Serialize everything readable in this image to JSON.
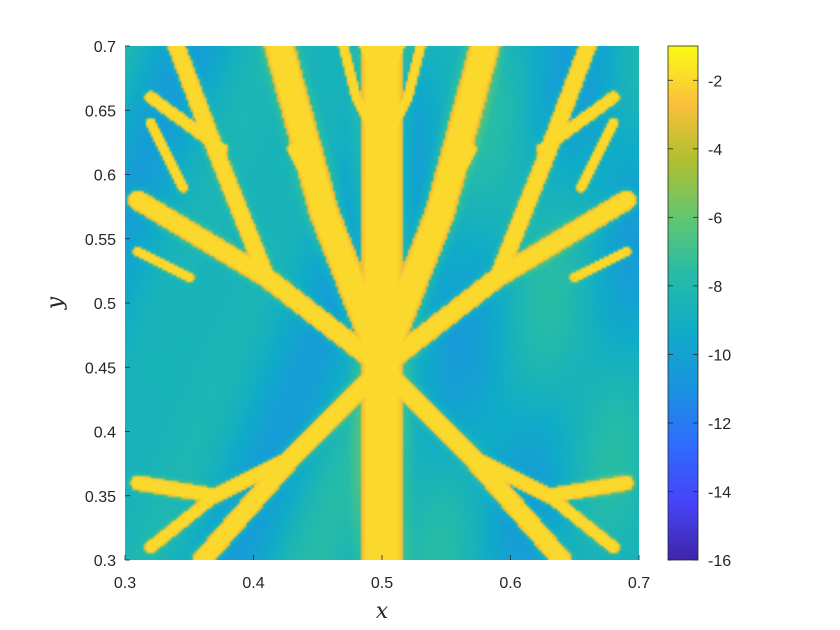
{
  "chart_data": {
    "type": "heatmap",
    "title": "",
    "xlabel": "x",
    "ylabel": "y",
    "xlim": [
      0.3,
      0.7
    ],
    "ylim": [
      0.3,
      0.7
    ],
    "x_ticks": [
      "0.3",
      "0.4",
      "0.5",
      "0.6",
      "0.7"
    ],
    "y_ticks": [
      "0.3",
      "0.35",
      "0.4",
      "0.45",
      "0.5",
      "0.55",
      "0.6",
      "0.65",
      "0.7"
    ],
    "colorbar": {
      "colormap": "parula",
      "range": [
        -16,
        -1
      ],
      "ticks": [
        "-2",
        "-4",
        "-6",
        "-8",
        "-10",
        "-12",
        "-14",
        "-16"
      ],
      "colors": [
        "#3e26a8",
        "#4743f8",
        "#2f6bfe",
        "#1a92e0",
        "#10acc8",
        "#26bca7",
        "#63c66f",
        "#b0c02f",
        "#fcc03b",
        "#f9fb15"
      ]
    },
    "background_value": -9,
    "branch_value": -2,
    "description_of_field": "Symmetric dendritic/branching structure of high values around x = 0.5 on a background of low values",
    "branches": [
      {
        "points": [
          [
            0.5,
            0.3
          ],
          [
            0.5,
            0.45
          ],
          [
            0.5,
            0.7
          ]
        ],
        "w": 0.017
      },
      {
        "points": [
          [
            0.5,
            0.455
          ],
          [
            0.455,
            0.57
          ],
          [
            0.42,
            0.7
          ]
        ],
        "w": 0.012
      },
      {
        "points": [
          [
            0.5,
            0.455
          ],
          [
            0.545,
            0.57
          ],
          [
            0.58,
            0.7
          ]
        ],
        "w": 0.012
      },
      {
        "points": [
          [
            0.5,
            0.45
          ],
          [
            0.41,
            0.52
          ],
          [
            0.31,
            0.58
          ]
        ],
        "w": 0.008
      },
      {
        "points": [
          [
            0.5,
            0.45
          ],
          [
            0.59,
            0.52
          ],
          [
            0.69,
            0.58
          ]
        ],
        "w": 0.008
      },
      {
        "points": [
          [
            0.5,
            0.45
          ],
          [
            0.43,
            0.38
          ],
          [
            0.36,
            0.3
          ]
        ],
        "w": 0.008
      },
      {
        "points": [
          [
            0.5,
            0.45
          ],
          [
            0.57,
            0.38
          ],
          [
            0.64,
            0.3
          ]
        ],
        "w": 0.008
      },
      {
        "points": [
          [
            0.41,
            0.52
          ],
          [
            0.37,
            0.62
          ],
          [
            0.34,
            0.7
          ]
        ],
        "w": 0.007
      },
      {
        "points": [
          [
            0.59,
            0.52
          ],
          [
            0.63,
            0.62
          ],
          [
            0.66,
            0.7
          ]
        ],
        "w": 0.007
      },
      {
        "points": [
          [
            0.375,
            0.62
          ],
          [
            0.32,
            0.66
          ]
        ],
        "w": 0.005
      },
      {
        "points": [
          [
            0.625,
            0.62
          ],
          [
            0.68,
            0.66
          ]
        ],
        "w": 0.005
      },
      {
        "points": [
          [
            0.43,
            0.38
          ],
          [
            0.37,
            0.35
          ],
          [
            0.31,
            0.36
          ]
        ],
        "w": 0.006
      },
      {
        "points": [
          [
            0.57,
            0.38
          ],
          [
            0.63,
            0.35
          ],
          [
            0.69,
            0.36
          ]
        ],
        "w": 0.006
      },
      {
        "points": [
          [
            0.37,
            0.35
          ],
          [
            0.32,
            0.31
          ]
        ],
        "w": 0.005
      },
      {
        "points": [
          [
            0.63,
            0.35
          ],
          [
            0.68,
            0.31
          ]
        ],
        "w": 0.005
      },
      {
        "points": [
          [
            0.5,
            0.62
          ],
          [
            0.48,
            0.66
          ],
          [
            0.47,
            0.7
          ]
        ],
        "w": 0.004
      },
      {
        "points": [
          [
            0.5,
            0.62
          ],
          [
            0.52,
            0.66
          ],
          [
            0.53,
            0.7
          ]
        ],
        "w": 0.004
      },
      {
        "points": [
          [
            0.5,
            0.66
          ],
          [
            0.485,
            0.7
          ]
        ],
        "w": 0.003
      },
      {
        "points": [
          [
            0.5,
            0.66
          ],
          [
            0.515,
            0.7
          ]
        ],
        "w": 0.003
      },
      {
        "points": [
          [
            0.35,
            0.52
          ],
          [
            0.31,
            0.54
          ]
        ],
        "w": 0.004
      },
      {
        "points": [
          [
            0.65,
            0.52
          ],
          [
            0.69,
            0.54
          ]
        ],
        "w": 0.004
      },
      {
        "points": [
          [
            0.345,
            0.59
          ],
          [
            0.32,
            0.64
          ]
        ],
        "w": 0.004
      },
      {
        "points": [
          [
            0.655,
            0.59
          ],
          [
            0.68,
            0.64
          ]
        ],
        "w": 0.004
      },
      {
        "points": [
          [
            0.455,
            0.57
          ],
          [
            0.43,
            0.62
          ]
        ],
        "w": 0.004
      },
      {
        "points": [
          [
            0.545,
            0.57
          ],
          [
            0.57,
            0.62
          ]
        ],
        "w": 0.004
      }
    ]
  }
}
